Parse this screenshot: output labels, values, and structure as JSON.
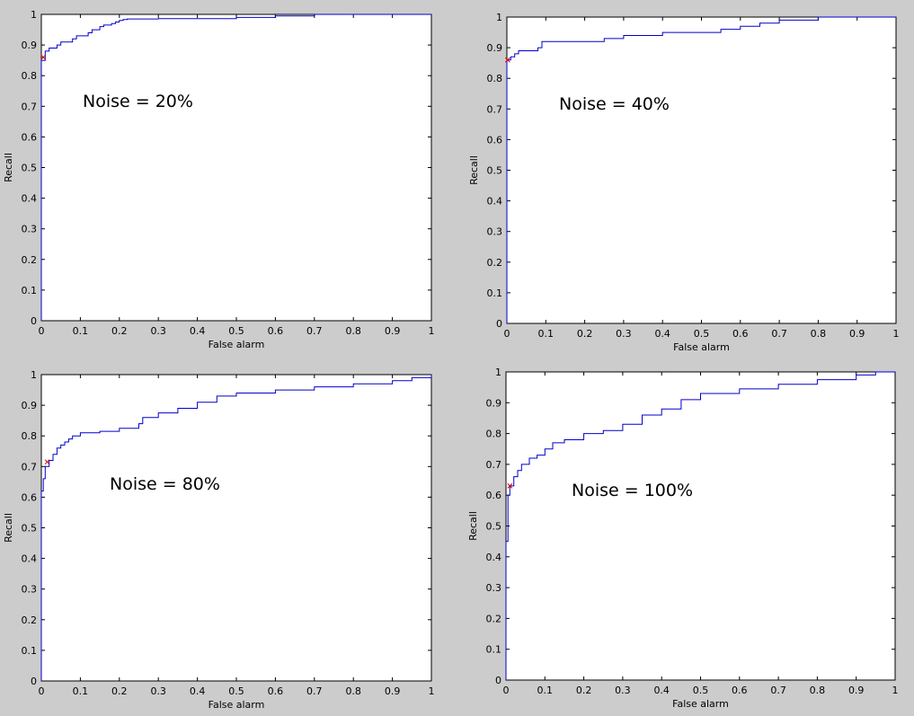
{
  "figure": {
    "background": "#cccccc",
    "line_color": "#0000cc",
    "marker_color": "#cc0000"
  },
  "chart_data": [
    {
      "type": "line",
      "annotation": "Noise = 20%",
      "xlabel": "False alarm",
      "ylabel": "Recall",
      "xlim": [
        0,
        1
      ],
      "ylim": [
        0,
        1
      ],
      "xticks": [
        0,
        0.1,
        0.2,
        0.3,
        0.4,
        0.5,
        0.6,
        0.7,
        0.8,
        0.9,
        1
      ],
      "yticks": [
        0,
        0.1,
        0.2,
        0.3,
        0.4,
        0.5,
        0.6,
        0.7,
        0.8,
        0.9,
        1
      ],
      "xtick_labels": [
        "0",
        "0.1",
        "0.2",
        "0.3",
        "0.4",
        "0.5",
        "0.6",
        "0.7",
        "0.8",
        "0.9",
        "1"
      ],
      "ytick_labels": [
        "0",
        "0.1",
        "0.2",
        "0.3",
        "0.4",
        "0.5",
        "0.6",
        "0.7",
        "0.8",
        "0.9",
        "1"
      ],
      "grid": false,
      "series": [
        {
          "x": [
            0,
            0,
            0.01,
            0.02,
            0.04,
            0.05,
            0.08,
            0.09,
            0.12,
            0.13,
            0.15,
            0.16,
            0.18,
            0.19,
            0.2,
            0.21,
            0.22,
            0.3,
            0.5,
            0.6,
            0.7,
            0.8,
            1
          ],
          "y": [
            0,
            0.85,
            0.88,
            0.89,
            0.9,
            0.91,
            0.92,
            0.93,
            0.94,
            0.95,
            0.96,
            0.965,
            0.97,
            0.975,
            0.98,
            0.983,
            0.985,
            0.986,
            0.99,
            0.995,
            1,
            1,
            1
          ]
        }
      ],
      "markers": [
        {
          "x": 0.005,
          "y": 0.86
        }
      ]
    },
    {
      "type": "line",
      "annotation": "Noise = 40%",
      "xlabel": "False alarm",
      "ylabel": "Recall",
      "xlim": [
        0,
        1
      ],
      "ylim": [
        0,
        1
      ],
      "xticks": [
        0,
        0.1,
        0.2,
        0.3,
        0.4,
        0.5,
        0.6,
        0.7,
        0.8,
        0.9,
        1
      ],
      "yticks": [
        0,
        0.1,
        0.2,
        0.3,
        0.4,
        0.5,
        0.6,
        0.7,
        0.8,
        0.9,
        1
      ],
      "xtick_labels": [
        "0",
        "0.1",
        "0.2",
        "0.3",
        "0.4",
        "0.5",
        "0.6",
        "0.7",
        "0.8",
        "0.9",
        "1"
      ],
      "ytick_labels": [
        "0",
        "0.1",
        "0.2",
        "0.3",
        "0.4",
        "0.5",
        "0.6",
        "0.7",
        "0.8",
        "0.9",
        "1"
      ],
      "grid": false,
      "series": [
        {
          "x": [
            0,
            0,
            0.01,
            0.02,
            0.03,
            0.04,
            0.08,
            0.09,
            0.2,
            0.25,
            0.3,
            0.4,
            0.5,
            0.55,
            0.6,
            0.65,
            0.7,
            0.8,
            1
          ],
          "y": [
            0,
            0.86,
            0.87,
            0.88,
            0.89,
            0.89,
            0.9,
            0.92,
            0.92,
            0.93,
            0.94,
            0.95,
            0.95,
            0.96,
            0.97,
            0.98,
            0.99,
            1,
            1
          ]
        }
      ],
      "markers": [
        {
          "x": 0.002,
          "y": 0.86
        }
      ]
    },
    {
      "type": "line",
      "annotation": "Noise = 80%",
      "xlabel": "False alarm",
      "ylabel": "Recall",
      "xlim": [
        0,
        1
      ],
      "ylim": [
        0,
        1
      ],
      "xticks": [
        0,
        0.1,
        0.2,
        0.3,
        0.4,
        0.5,
        0.6,
        0.7,
        0.8,
        0.9,
        1
      ],
      "yticks": [
        0,
        0.1,
        0.2,
        0.3,
        0.4,
        0.5,
        0.6,
        0.7,
        0.8,
        0.9,
        1
      ],
      "xtick_labels": [
        "0",
        "0.1",
        "0.2",
        "0.3",
        "0.4",
        "0.5",
        "0.6",
        "0.7",
        "0.8",
        "0.9",
        "1"
      ],
      "ytick_labels": [
        "0",
        "0.1",
        "0.2",
        "0.3",
        "0.4",
        "0.5",
        "0.6",
        "0.7",
        "0.8",
        "0.9",
        "1"
      ],
      "grid": false,
      "series": [
        {
          "x": [
            0,
            0,
            0.005,
            0.01,
            0.02,
            0.03,
            0.04,
            0.05,
            0.06,
            0.07,
            0.08,
            0.1,
            0.15,
            0.2,
            0.25,
            0.26,
            0.3,
            0.35,
            0.4,
            0.45,
            0.5,
            0.6,
            0.7,
            0.8,
            0.9,
            0.95,
            1
          ],
          "y": [
            0,
            0.62,
            0.66,
            0.7,
            0.72,
            0.74,
            0.76,
            0.77,
            0.78,
            0.79,
            0.8,
            0.81,
            0.815,
            0.825,
            0.84,
            0.86,
            0.875,
            0.89,
            0.91,
            0.93,
            0.94,
            0.95,
            0.96,
            0.97,
            0.98,
            0.99,
            1
          ]
        }
      ],
      "markers": [
        {
          "x": 0.015,
          "y": 0.715
        }
      ]
    },
    {
      "type": "line",
      "annotation": "Noise = 100%",
      "xlabel": "False alarm",
      "ylabel": "Recall",
      "xlim": [
        0,
        1
      ],
      "ylim": [
        0,
        1
      ],
      "xticks": [
        0,
        0.1,
        0.2,
        0.3,
        0.4,
        0.5,
        0.6,
        0.7,
        0.8,
        0.9,
        1
      ],
      "yticks": [
        0,
        0.1,
        0.2,
        0.3,
        0.4,
        0.5,
        0.6,
        0.7,
        0.8,
        0.9,
        1
      ],
      "xtick_labels": [
        "0",
        "0.1",
        "0.2",
        "0.3",
        "0.4",
        "0.5",
        "0.6",
        "0.7",
        "0.8",
        "0.9",
        "1"
      ],
      "ytick_labels": [
        "0",
        "0.1",
        "0.2",
        "0.3",
        "0.4",
        "0.5",
        "0.6",
        "0.7",
        "0.8",
        "0.9",
        "1"
      ],
      "grid": false,
      "series": [
        {
          "x": [
            0,
            0,
            0.005,
            0.01,
            0.02,
            0.03,
            0.04,
            0.06,
            0.08,
            0.1,
            0.12,
            0.15,
            0.2,
            0.25,
            0.3,
            0.35,
            0.4,
            0.45,
            0.5,
            0.6,
            0.7,
            0.8,
            0.9,
            0.95,
            1
          ],
          "y": [
            0,
            0.45,
            0.6,
            0.63,
            0.66,
            0.68,
            0.7,
            0.72,
            0.73,
            0.75,
            0.77,
            0.78,
            0.8,
            0.81,
            0.83,
            0.86,
            0.88,
            0.91,
            0.93,
            0.945,
            0.96,
            0.975,
            0.99,
            1,
            1
          ]
        }
      ],
      "markers": [
        {
          "x": 0.01,
          "y": 0.63
        }
      ]
    }
  ]
}
